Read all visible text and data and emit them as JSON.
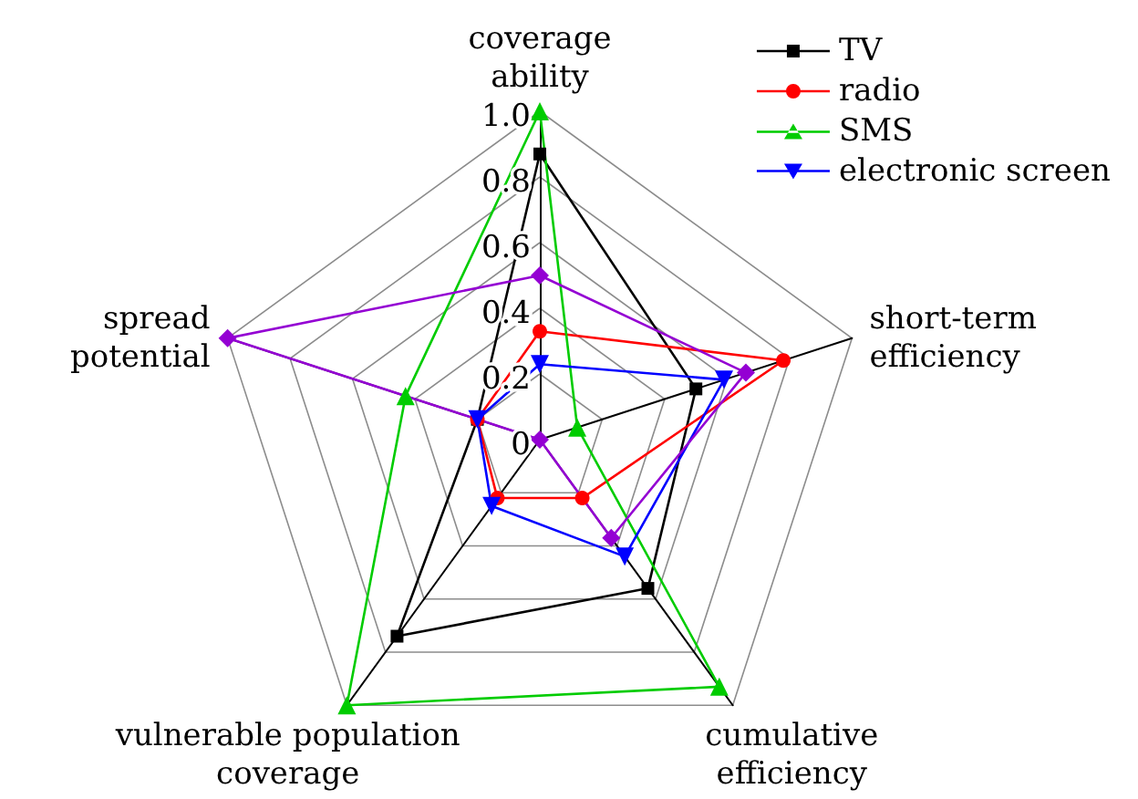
{
  "chart_data": {
    "type": "radar",
    "categories": [
      "coverage\nability",
      "short-term\nefficiency",
      "cumulative\nefficiency",
      "vulnerable population\ncoverage",
      "spread\npotential"
    ],
    "ylim": [
      0,
      1
    ],
    "yticks": [
      0,
      0.2,
      0.4,
      0.6,
      0.8,
      {
        "value": 1,
        "label": "1.0"
      }
    ],
    "grid": true,
    "legend": "top right",
    "series": [
      {
        "name": "TV",
        "color": "#000000",
        "marker": "square",
        "values": [
          0.87,
          0.5,
          0.56,
          0.74,
          0.2
        ]
      },
      {
        "name": "radio",
        "color": "#ff0000",
        "marker": "circle",
        "values": [
          0.33,
          0.78,
          0.22,
          0.22,
          0.2
        ]
      },
      {
        "name": "SMS",
        "color": "#00cc00",
        "marker": "triangle",
        "values": [
          1,
          0.12,
          0.93,
          1,
          0.43
        ]
      },
      {
        "name": "electronic screen",
        "color": "#0000ff",
        "marker": "triangle-down",
        "values": [
          0.23,
          0.59,
          0.44,
          0.25,
          0.2
        ]
      },
      {
        "color": "#9400d3",
        "marker": "diamond",
        "values": [
          0.5,
          0.66,
          0.37,
          0,
          1
        ]
      }
    ]
  }
}
